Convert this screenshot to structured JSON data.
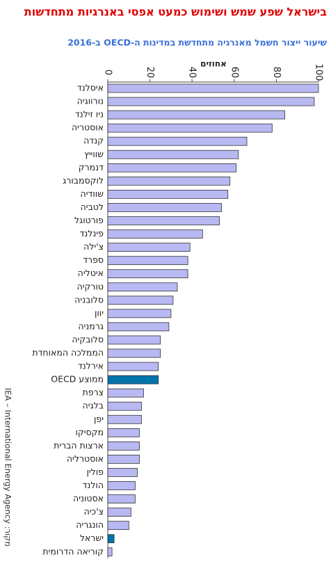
{
  "chart_data": {
    "type": "hbar",
    "title": "בישראל שפע שמש ושימוש כמעט אפסי באנרגיות מתחדשות",
    "subtitle": "שיעור ייצור חשמל מאנרגיה מתחדשת במדינות ה-OECD ב-2016",
    "x_label": "אחוזים",
    "source": "מקור: IEA – International Energy Agency",
    "categories": [
      "איסלנד",
      "נורווגיה",
      "ניו זילנד",
      "אוסטריה",
      "קנדה",
      "שווייץ",
      "דנמרק",
      "לוקסמבורג",
      "שוודיה",
      "לטביה",
      "פורטוגל",
      "פינלנד",
      "צ'ילה",
      "ספרד",
      "איטליה",
      "טורקיה",
      "סלובניה",
      "יוון",
      "גרמניה",
      "סלובקיה",
      "הממלכה המאוחדת",
      "אירלנד",
      "ממוצע OECD",
      "צרפת",
      "בלגיה",
      "יפן",
      "מקסיקו",
      "ארצות הברית",
      "אוסטרליה",
      "פולין",
      "הולנד",
      "אסטוניה",
      "צ'כיה",
      "הונגריה",
      "ישראל",
      "קוריאה הדרומית"
    ],
    "values": [
      100,
      98,
      84,
      78,
      66,
      62,
      61,
      58,
      57,
      54,
      53,
      45,
      39,
      38,
      38,
      33,
      31,
      30,
      29,
      25,
      25,
      24,
      24,
      17,
      16,
      16,
      15,
      15,
      15,
      14,
      13,
      13,
      11,
      10,
      3,
      2
    ],
    "colors": [
      "#b8b8f2",
      "#b8b8f2",
      "#b8b8f2",
      "#b8b8f2",
      "#b8b8f2",
      "#b8b8f2",
      "#b8b8f2",
      "#b8b8f2",
      "#b8b8f2",
      "#b8b8f2",
      "#b8b8f2",
      "#b8b8f2",
      "#b8b8f2",
      "#b8b8f2",
      "#b8b8f2",
      "#b8b8f2",
      "#b8b8f2",
      "#b8b8f2",
      "#b8b8f2",
      "#b8b8f2",
      "#b8b8f2",
      "#b8b8f2",
      "#0073aa",
      "#b8b8f2",
      "#b8b8f2",
      "#b8b8f2",
      "#b8b8f2",
      "#b8b8f2",
      "#b8b8f2",
      "#b8b8f2",
      "#b8b8f2",
      "#b8b8f2",
      "#b8b8f2",
      "#b8b8f2",
      "#0073aa",
      "#b8b8f2"
    ],
    "xlim": [
      0,
      100
    ],
    "xticks": [
      0,
      20,
      40,
      60,
      80,
      100
    ]
  }
}
